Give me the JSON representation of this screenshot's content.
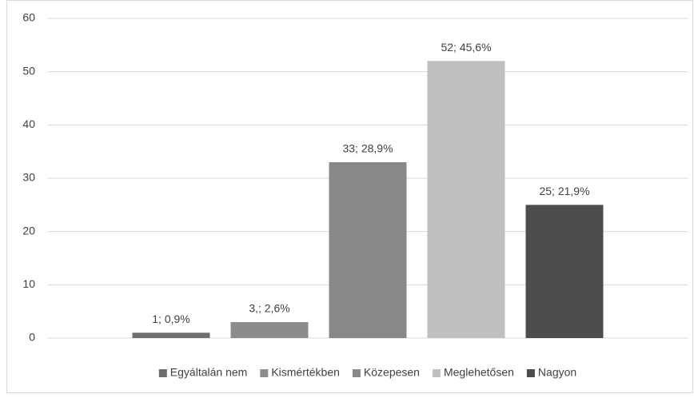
{
  "chart_data": {
    "type": "bar",
    "categories": [
      null
    ],
    "series": [
      {
        "name": "Egyáltalán nem",
        "color": "#6e6e6e",
        "values": [
          1
        ],
        "value_labels": [
          "1; 0,9%"
        ]
      },
      {
        "name": "Kismértékben",
        "color": "#8c8c8c",
        "values": [
          3
        ],
        "value_labels": [
          "3,; 2,6%"
        ]
      },
      {
        "name": "Közepesen",
        "color": "#888888",
        "values": [
          33
        ],
        "value_labels": [
          "33; 28,9%"
        ]
      },
      {
        "name": "Meglehetősen",
        "color": "#bfbfbf",
        "values": [
          52
        ],
        "value_labels": [
          "52; 45,6%"
        ]
      },
      {
        "name": "Nagyon",
        "color": "#4d4d4d",
        "values": [
          25
        ],
        "value_labels": [
          "25; 21,9%"
        ]
      }
    ],
    "ylim": [
      0,
      60
    ],
    "yticks": [
      0,
      10,
      20,
      30,
      40,
      50,
      60
    ],
    "grid": true,
    "legend": "bottom"
  }
}
